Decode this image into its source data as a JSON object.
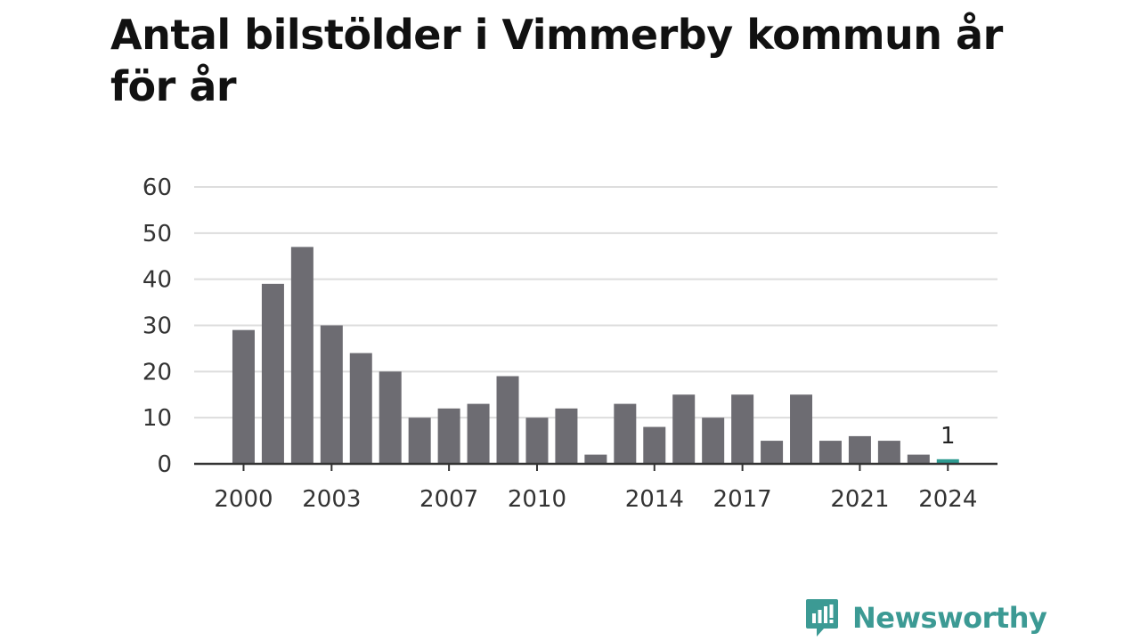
{
  "chart_data": {
    "type": "bar",
    "title": "Antal bilstölder i Vimmerby kommun år för år",
    "xlabel": "",
    "ylabel": "",
    "categories": [
      2000,
      2001,
      2002,
      2003,
      2004,
      2005,
      2006,
      2007,
      2008,
      2009,
      2010,
      2011,
      2012,
      2013,
      2014,
      2015,
      2016,
      2017,
      2018,
      2019,
      2020,
      2021,
      2022,
      2023,
      2024
    ],
    "values": [
      29,
      39,
      47,
      30,
      24,
      20,
      10,
      12,
      13,
      19,
      10,
      12,
      2,
      13,
      8,
      15,
      10,
      15,
      5,
      15,
      5,
      6,
      5,
      2,
      1
    ],
    "x_tick_labels": [
      "2000",
      "2003",
      "2007",
      "2010",
      "2014",
      "2017",
      "2021",
      "2024"
    ],
    "y_ticks": [
      0,
      10,
      20,
      30,
      40,
      50,
      60
    ],
    "ylim": [
      0,
      60
    ],
    "grid": true,
    "legend": "none",
    "highlight": {
      "category": 2024,
      "label": "1"
    },
    "colors": {
      "bar": "#6d6c72",
      "highlight": "#2e9b91",
      "grid": "#dddddd",
      "axis": "#333333"
    }
  },
  "branding": {
    "name": "Newsworthy",
    "icon": "newsworthy-chart-bubble-icon",
    "color": "#3c9a94"
  }
}
